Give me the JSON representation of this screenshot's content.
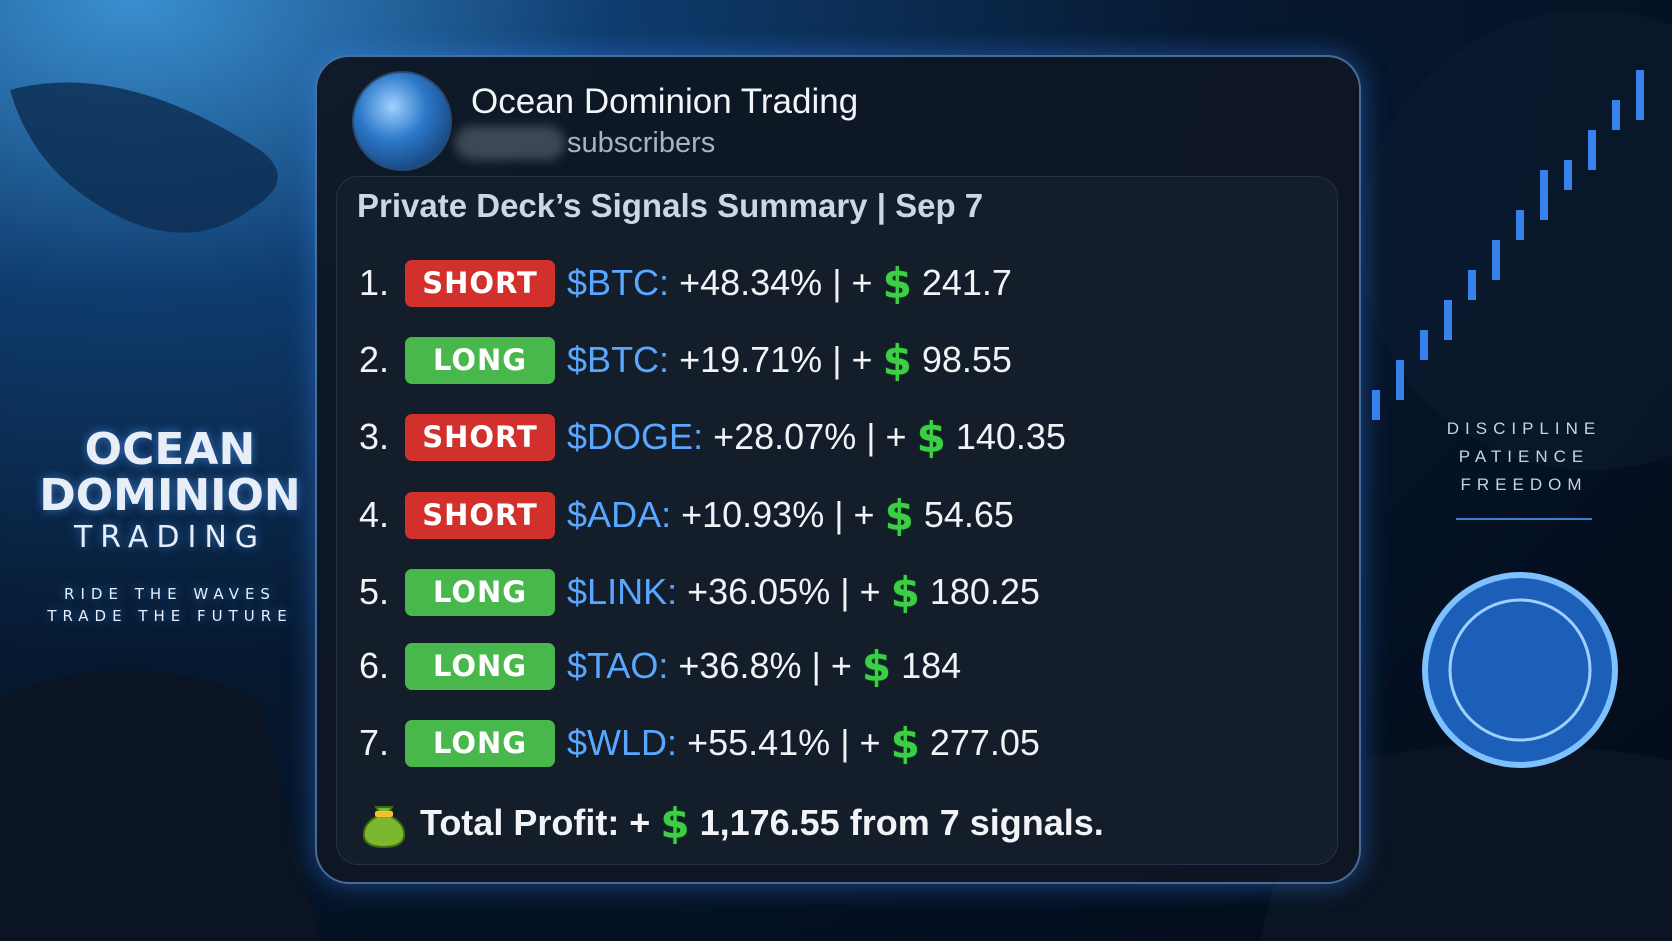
{
  "left_brand": {
    "line1": "OCEAN",
    "line2": "DOMINION",
    "line3": "TRADING",
    "tagline1": "RIDE THE WAVES",
    "tagline2": "TRADE THE FUTURE"
  },
  "right_brand": {
    "lines": [
      "DISCIPLINE",
      "PATIENCE",
      "FREEDOM"
    ]
  },
  "channel": {
    "name": "Ocean Dominion Trading",
    "subscribers_label": "subscribers"
  },
  "currency_symbol": "$",
  "post": {
    "title": "Private Deck’s Signals Summary | Sep 7",
    "separator": "| +",
    "signals": [
      {
        "index": "1.",
        "side": "SHORT",
        "ticker": "$BTC:",
        "change": "+48.34%",
        "profit": "241.7"
      },
      {
        "index": "2.",
        "side": "LONG",
        "ticker": "$BTC:",
        "change": "+19.71%",
        "profit": "98.55"
      },
      {
        "index": "3.",
        "side": "SHORT",
        "ticker": "$DOGE:",
        "change": "+28.07%",
        "profit": "140.35"
      },
      {
        "index": "4.",
        "side": "SHORT",
        "ticker": "$ADA:",
        "change": "+10.93%",
        "profit": "54.65"
      },
      {
        "index": "5.",
        "side": "LONG",
        "ticker": "$LINK:",
        "change": "+36.05%",
        "profit": "180.25"
      },
      {
        "index": "6.",
        "side": "LONG",
        "ticker": "$TAO:",
        "change": "+36.8%",
        "profit": "184"
      },
      {
        "index": "7.",
        "side": "LONG",
        "ticker": "$WLD:",
        "change": "+55.41%",
        "profit": "277.05"
      }
    ],
    "total": {
      "label": "Total Profit: +",
      "amount": "1,176.55",
      "suffix": "from 7 signals."
    }
  }
}
